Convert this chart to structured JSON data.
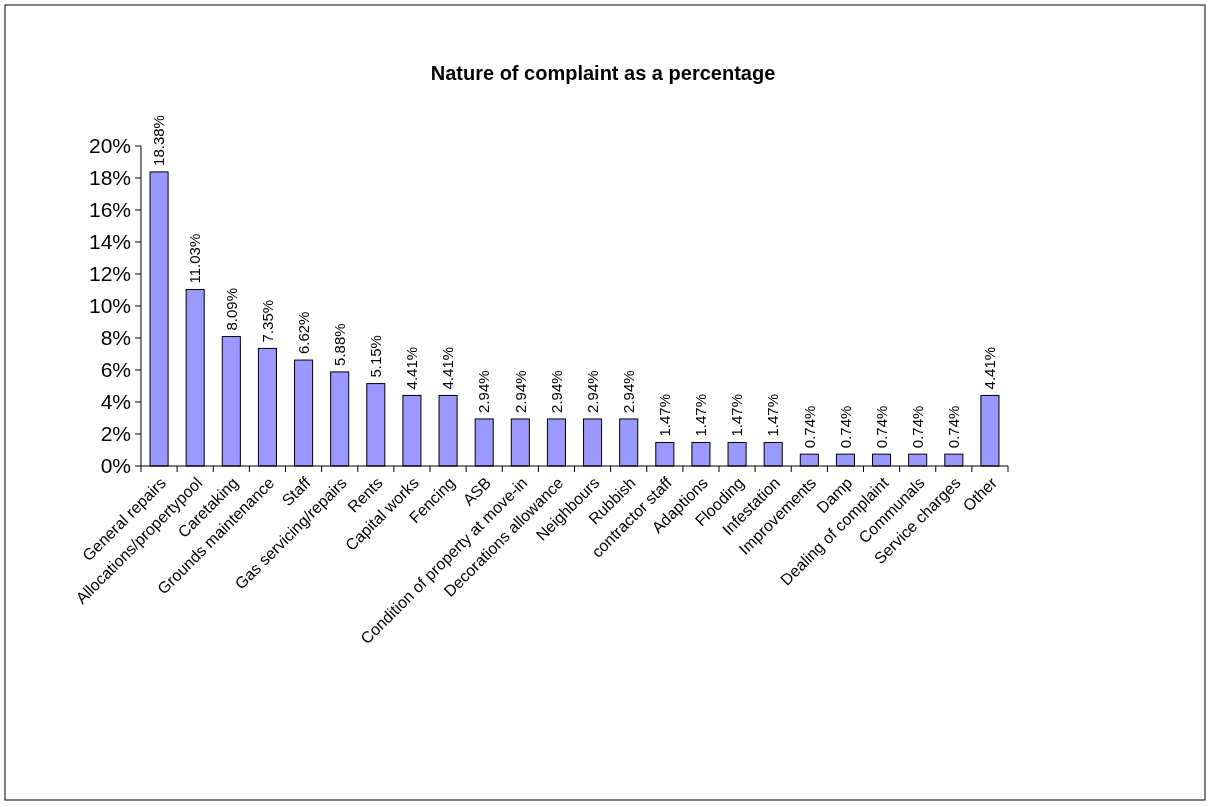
{
  "chart_data": {
    "type": "bar",
    "title": "Nature of complaint as a percentage",
    "categories": [
      "General repairs",
      "Allocations/propertypool",
      "Caretaking",
      "Grounds maintenance",
      "Staff",
      "Gas servicing/repairs",
      "Rents",
      "Capital works",
      "Fencing",
      "ASB",
      "Condition of property at move-in",
      "Decorations allowance",
      "Neighbours",
      "Rubbish",
      "contractor staff",
      "Adaptions",
      "Flooding",
      "Infestation",
      "Improvements",
      "Damp",
      "Dealing of complaint",
      "Communals",
      "Service charges",
      "Other"
    ],
    "values": [
      18.38,
      11.03,
      8.09,
      7.35,
      6.62,
      5.88,
      5.15,
      4.41,
      4.41,
      2.94,
      2.94,
      2.94,
      2.94,
      2.94,
      1.47,
      1.47,
      1.47,
      1.47,
      0.74,
      0.74,
      0.74,
      0.74,
      0.74,
      4.41
    ],
    "value_labels": [
      "18.38%",
      "11.03%",
      "8.09%",
      "7.35%",
      "6.62%",
      "5.88%",
      "5.15%",
      "4.41%",
      "4.41%",
      "2.94%",
      "2.94%",
      "2.94%",
      "2.94%",
      "2.94%",
      "1.47%",
      "1.47%",
      "1.47%",
      "1.47%",
      "0.74%",
      "0.74%",
      "0.74%",
      "0.74%",
      "0.74%",
      "4.41%"
    ],
    "color": "#9999ff",
    "ylim": [
      0,
      20
    ],
    "yticks": [
      {
        "value": 0,
        "label": "0%"
      },
      {
        "value": 2,
        "label": "2%"
      },
      {
        "value": 4,
        "label": "4%"
      },
      {
        "value": 6,
        "label": "6%"
      },
      {
        "value": 8,
        "label": "8%"
      },
      {
        "value": 10,
        "label": "10%"
      },
      {
        "value": 12,
        "label": "12%"
      },
      {
        "value": 14,
        "label": "14%"
      },
      {
        "value": 16,
        "label": "16%"
      },
      {
        "value": 18,
        "label": "18%"
      },
      {
        "value": 20,
        "label": "20%"
      }
    ],
    "grid": false
  }
}
